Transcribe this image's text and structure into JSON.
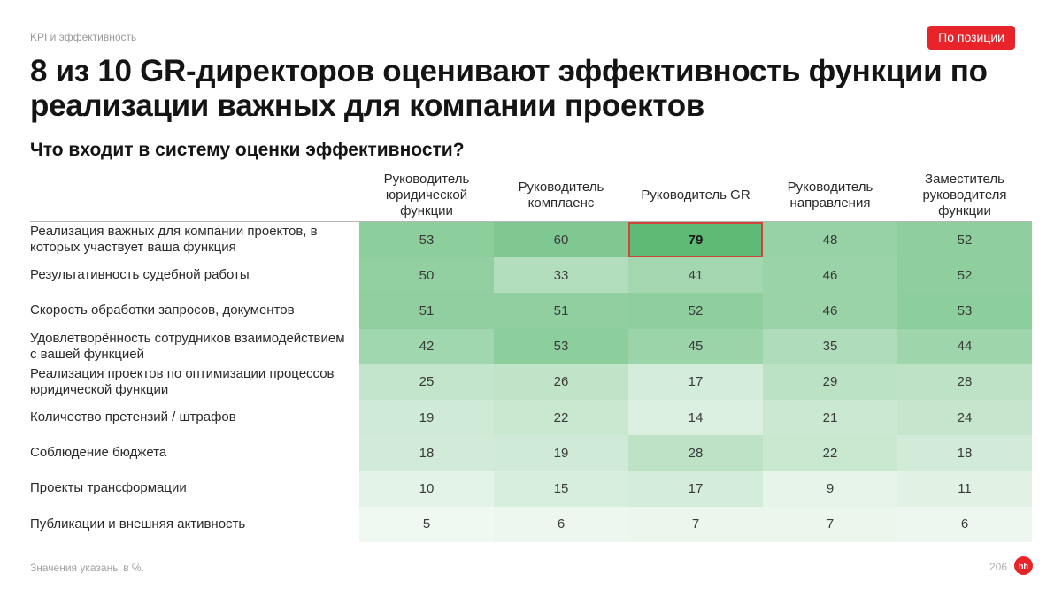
{
  "header": {
    "section_label": "KPI и эффективность",
    "tag_label": "По позиции",
    "title": "8 из 10 GR-директоров оценивают эффективность функции по реализации важных для компании проектов",
    "subtitle": "Что входит в систему оценки эффективности?"
  },
  "chart_data": {
    "type": "heatmap",
    "columns": [
      "Руководитель юридической функции",
      "Руководитель комплаенс",
      "Руководитель GR",
      "Руководитель направления",
      "Заместитель руководителя функции"
    ],
    "rows": [
      {
        "label": "Реализация важных для компании проектов, в которых участвует ваша функция",
        "values": [
          53,
          60,
          79,
          48,
          52
        ]
      },
      {
        "label": "Результативность судебной работы",
        "values": [
          50,
          33,
          41,
          46,
          52
        ]
      },
      {
        "label": "Скорость обработки запросов, документов",
        "values": [
          51,
          51,
          52,
          46,
          53
        ]
      },
      {
        "label": "Удовлетворённость сотрудников взаимодействием с вашей функцией",
        "values": [
          42,
          53,
          45,
          35,
          44
        ]
      },
      {
        "label": "Реализация проектов по оптимизации процессов юридической функции",
        "values": [
          25,
          26,
          17,
          29,
          28
        ]
      },
      {
        "label": "Количество претензий / штрафов",
        "values": [
          19,
          22,
          14,
          21,
          24
        ]
      },
      {
        "label": "Соблюдение бюджета",
        "values": [
          18,
          19,
          28,
          22,
          18
        ]
      },
      {
        "label": "Проекты трансформации",
        "values": [
          10,
          15,
          17,
          9,
          11
        ]
      },
      {
        "label": "Публикации и внешняя активность",
        "values": [
          5,
          6,
          7,
          7,
          6
        ]
      }
    ],
    "highlight": {
      "row": 0,
      "col": 2
    },
    "color_low": "#ffffff",
    "color_high": "#5fba75",
    "highlight_border": "#d0463a",
    "unit": "%"
  },
  "footer": {
    "note": "Значения указаны в %.",
    "page_number": "206",
    "logo_text": "hh"
  },
  "colors": {
    "accent": "#e8232a"
  }
}
